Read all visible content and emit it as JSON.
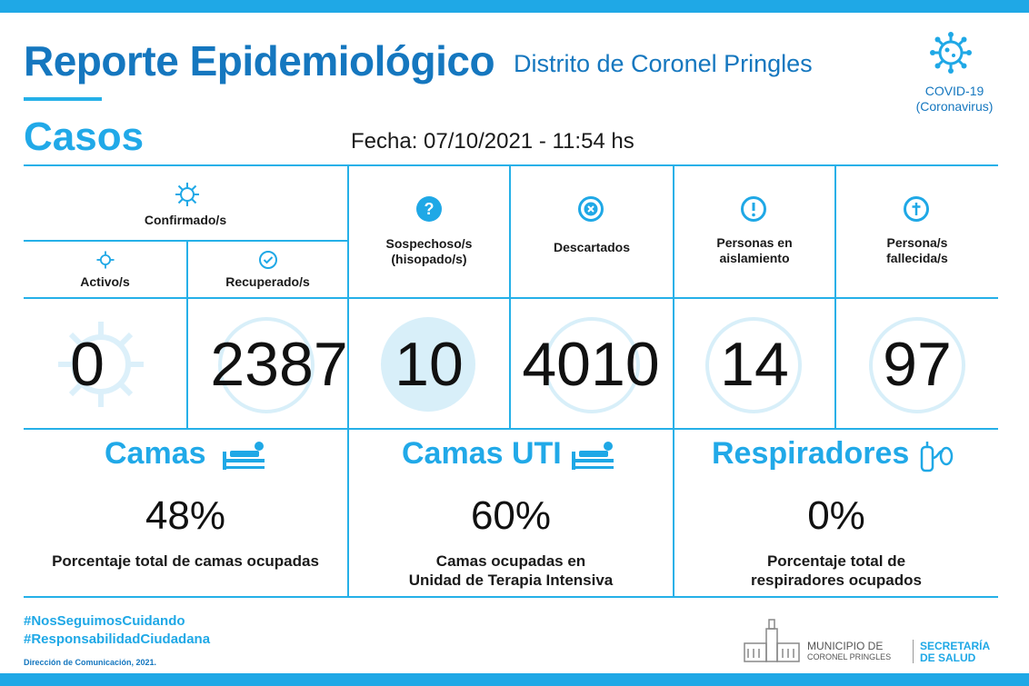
{
  "header": {
    "title": "Reporte Epidemiológico",
    "subtitle": "Distrito de Coronel Pringles",
    "section": "Casos",
    "fecha": "Fecha: 07/10/2021 - 11:54 hs",
    "covid_label_1": "COVID-19",
    "covid_label_2": "(Coronavirus)"
  },
  "table": {
    "confirmados_label": "Confirmado/s",
    "activos_label": "Activo/s",
    "recuperados_label": "Recuperado/s",
    "sospechosos_label_1": "Sospechoso/s",
    "sospechosos_label_2": "(hisopado/s)",
    "descartados_label": "Descartados",
    "aislamiento_label_1": "Personas en",
    "aislamiento_label_2": "aislamiento",
    "fallecidos_label_1": "Persona/s",
    "fallecidos_label_2": "fallecida/s",
    "values": {
      "activos": "0",
      "recuperados": "2387",
      "sospechosos": "10",
      "descartados": "4010",
      "aislamiento": "14",
      "fallecidos": "97"
    }
  },
  "beds": {
    "camas_title": "Camas",
    "camas_pct": "48%",
    "camas_desc": "Porcentaje total de camas ocupadas",
    "uti_title": "Camas UTI",
    "uti_pct": "60%",
    "uti_desc_1": "Camas ocupadas en",
    "uti_desc_2": "Unidad de Terapia Intensiva",
    "resp_title": "Respiradores",
    "resp_pct": "0%",
    "resp_desc_1": "Porcentaje total de",
    "resp_desc_2": "respiradores ocupados"
  },
  "footer": {
    "hashtag_1": "#NosSeguimosCuidando",
    "hashtag_2": "#ResponsabilidadCiudadana",
    "credit": "Dirección de Comunicación, 2021.",
    "muni_1": "MUNICIPIO DE",
    "muni_2": "CORONEL PRINGLES",
    "sec_1": "SECRETARÍA",
    "sec_2": "DE SALUD"
  },
  "colors": {
    "primary": "#1577bf",
    "accent": "#21a9e8",
    "line": "#25b0e8"
  },
  "icons": [
    "virus-icon",
    "check-circle-icon",
    "question-circle-icon",
    "x-circle-icon",
    "exclamation-circle-icon",
    "cross-circle-icon",
    "bed-icon",
    "respirator-icon",
    "city-logo-icon"
  ]
}
